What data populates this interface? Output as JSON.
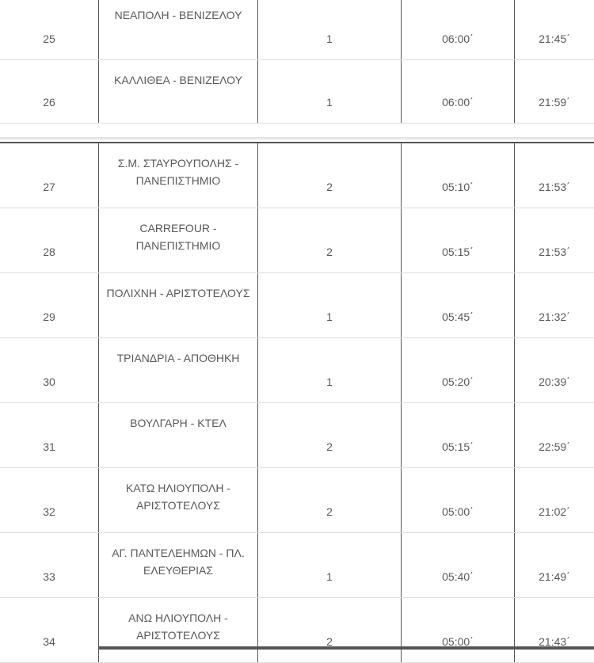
{
  "colors": {
    "column_border": "#555555",
    "row_border": "#dddddd",
    "section_top_border": "#555555",
    "divider": "#e5e5e5",
    "text": "#58595b",
    "background": "#ffffff"
  },
  "section1": {
    "rows": [
      {
        "number": "25",
        "name": "ΝΕΑΠΟΛΗ - ΒΕΝΙΖΕΛΟΥ",
        "count": "1",
        "start_time": "06:00΄",
        "end_time": "21:45΄"
      },
      {
        "number": "26",
        "name": "ΚΑΛΛΙΘΕΑ - ΒΕΝΙΖΕΛΟΥ",
        "count": "1",
        "start_time": "06:00΄",
        "end_time": "21:59΄"
      }
    ]
  },
  "section2": {
    "rows": [
      {
        "number": "27",
        "name": "Σ.Μ. ΣΤΑΥΡΟΥΠΟΛΗΣ - ΠΑΝΕΠΙΣΤΗΜΙΟ",
        "count": "2",
        "start_time": "05:10΄",
        "end_time": "21:53΄"
      },
      {
        "number": "28",
        "name": "CARREFOUR - ΠΑΝΕΠΙΣΤΗΜΙΟ",
        "count": "2",
        "start_time": "05:15΄",
        "end_time": "21:53΄"
      },
      {
        "number": "29",
        "name": "ΠΟΛΙΧΝΗ - ΑΡΙΣΤΟΤΕΛΟΥΣ",
        "count": "1",
        "start_time": "05:45΄",
        "end_time": "21:32΄"
      },
      {
        "number": "30",
        "name": "ΤΡΙΑΝΔΡΙΑ - ΑΠΟΘΗΚΗ",
        "count": "1",
        "start_time": "05:20΄",
        "end_time": "20:39΄"
      },
      {
        "number": "31",
        "name": "ΒΟΥΛΓΑΡΗ - ΚΤΕΛ",
        "count": "2",
        "start_time": "05:15΄",
        "end_time": "22:59΄"
      },
      {
        "number": "32",
        "name": "ΚΑΤΩ ΗΛΙΟΥΠΟΛΗ - ΑΡΙΣΤΟΤΕΛΟΥΣ",
        "count": "2",
        "start_time": "05:00΄",
        "end_time": "21:02΄"
      },
      {
        "number": "33",
        "name": "ΑΓ. ΠΑΝΤΕΛΕΗΜΩΝ - ΠΛ. ΕΛΕΥΘΕΡΙΑΣ",
        "count": "1",
        "start_time": "05:40΄",
        "end_time": "21:49΄"
      },
      {
        "number": "34",
        "name": "ΑΝΩ ΗΛΙΟΥΠΟΛΗ - ΑΡΙΣΤΟΤΕΛΟΥΣ",
        "count": "2",
        "start_time": "05:00΄",
        "end_time": "21:43΄"
      }
    ]
  }
}
